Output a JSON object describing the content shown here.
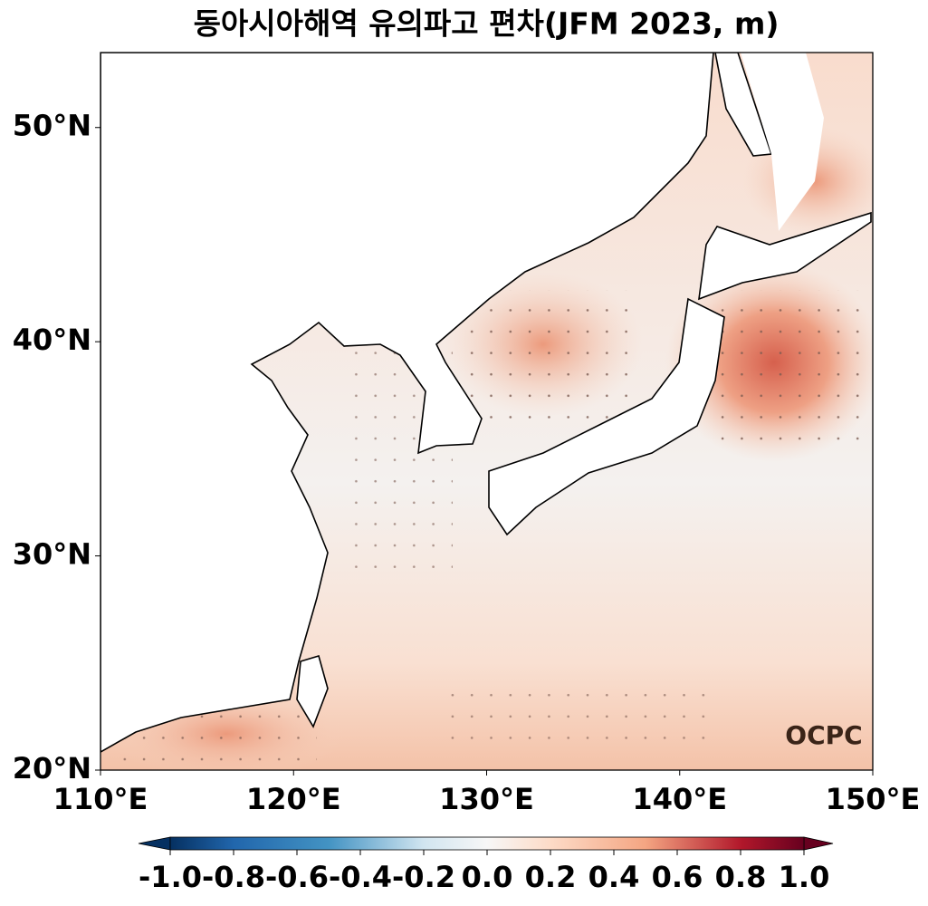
{
  "title": "동아시아해역 유의파고 편차(JFM 2023, m)",
  "map": {
    "xlim": [
      110,
      150
    ],
    "xticks": [
      {
        "value": 110,
        "label": "110°E"
      },
      {
        "value": 120,
        "label": "120°E"
      },
      {
        "value": 130,
        "label": "130°E"
      },
      {
        "value": 140,
        "label": "140°E"
      },
      {
        "value": 150,
        "label": "150°E"
      }
    ],
    "ylim": [
      20,
      53.5
    ],
    "yticks": [
      {
        "value": 20,
        "label": "20°N"
      },
      {
        "value": 30,
        "label": "30°N"
      },
      {
        "value": 40,
        "label": "40°N"
      },
      {
        "value": 50,
        "label": "50°N"
      }
    ]
  },
  "colorbar": {
    "lim": [
      -1,
      1
    ],
    "ticks": [
      {
        "value": -1,
        "label": "-1.0"
      },
      {
        "value": -0.8,
        "label": "-0.8"
      },
      {
        "value": -0.6,
        "label": "-0.6"
      },
      {
        "value": -0.4,
        "label": "-0.4"
      },
      {
        "value": -0.2,
        "label": "-0.2"
      },
      {
        "value": 0,
        "label": "0.0"
      },
      {
        "value": 0.2,
        "label": "0.2"
      },
      {
        "value": 0.4,
        "label": "0.4"
      },
      {
        "value": 0.6,
        "label": "0.6"
      },
      {
        "value": 0.8,
        "label": "0.8"
      },
      {
        "value": 1,
        "label": "1.0"
      }
    ]
  },
  "logo": "OCPC"
}
